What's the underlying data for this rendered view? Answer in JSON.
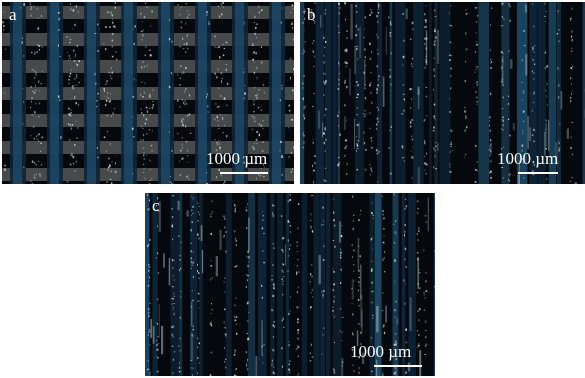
{
  "figure": {
    "panels": [
      {
        "label": "a",
        "scale_text": "1000 µm"
      },
      {
        "label": "b",
        "scale_text": "1000 µm"
      },
      {
        "label": "c",
        "scale_text": "1000 µm"
      }
    ]
  },
  "colors": {
    "background": "#05090d",
    "stripe_dark": "#0e2538",
    "stripe_blue": "#1f4e6e",
    "band_gray": "#7b7f7d",
    "speckle": "#cfd8d8",
    "scale_text": "#ffffff"
  }
}
